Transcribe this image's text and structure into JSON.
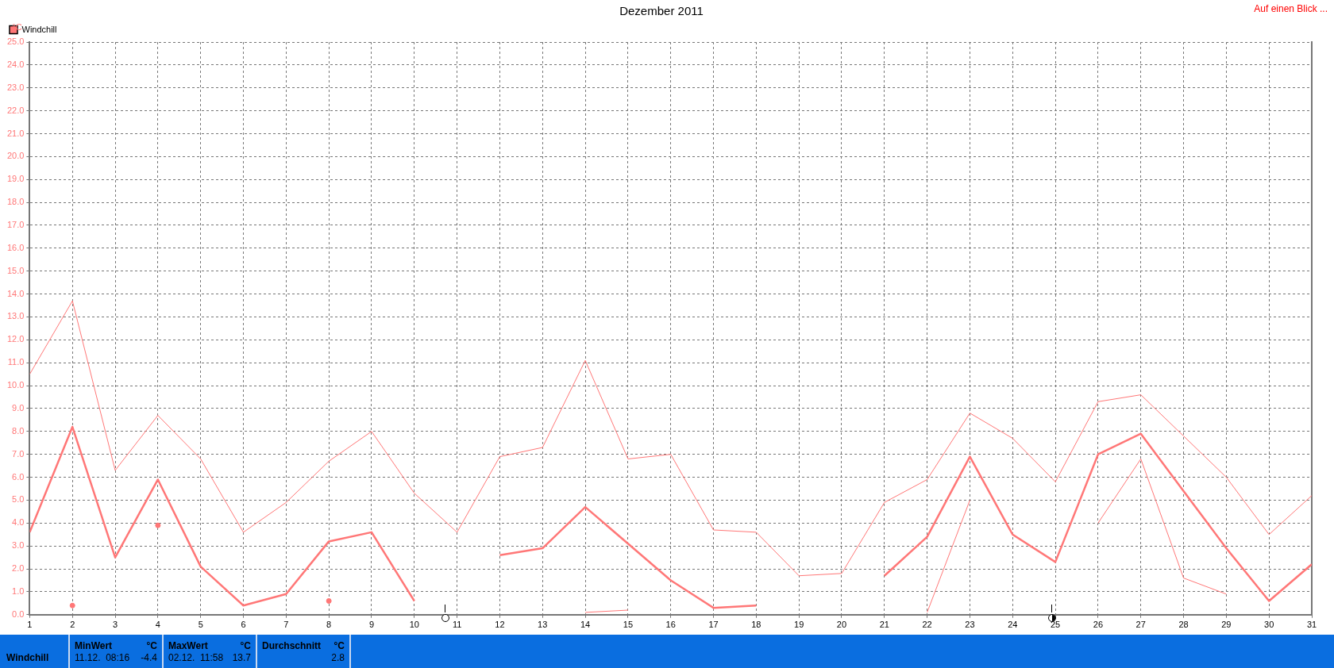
{
  "chart_data": {
    "type": "line",
    "title": "Dezember 2011",
    "ylabel": "°C",
    "x": [
      1,
      2,
      3,
      4,
      5,
      6,
      7,
      8,
      9,
      10,
      11,
      12,
      13,
      14,
      15,
      16,
      17,
      18,
      19,
      20,
      21,
      22,
      23,
      24,
      25,
      26,
      27,
      28,
      29,
      30,
      31
    ],
    "series": [
      {
        "color": "#ff7777",
        "values": [
          10.5,
          13.7,
          6.3,
          8.7,
          6.8,
          3.6,
          4.9,
          6.7,
          8.0,
          5.3,
          3.6,
          6.9,
          7.3,
          11.1,
          6.8,
          7.0,
          3.7,
          3.6,
          1.7,
          1.8,
          4.9,
          5.9,
          8.8,
          7.7,
          5.8,
          9.3,
          9.6,
          7.8,
          6.0,
          3.5,
          5.2
        ]
      },
      {
        "name": "Windchill",
        "color": "#ff7777",
        "values": [
          3.6,
          8.2,
          2.5,
          5.9,
          2.1,
          0.4,
          0.9,
          3.2,
          3.6,
          0.6,
          null,
          2.6,
          2.9,
          4.7,
          3.1,
          1.5,
          0.3,
          0.4,
          null,
          null,
          1.7,
          3.4,
          6.9,
          3.5,
          2.3,
          7.0,
          7.9,
          5.4,
          2.9,
          0.6,
          2.2
        ]
      },
      {
        "color": "#ff7777",
        "values": [
          null,
          0.4,
          null,
          3.9,
          null,
          null,
          null,
          0.6,
          null,
          null,
          null,
          null,
          null,
          0.1,
          0.2,
          null,
          null,
          null,
          null,
          null,
          null,
          0.1,
          5.0,
          null,
          null,
          4.0,
          6.8,
          1.6,
          0.9,
          null,
          null
        ]
      }
    ],
    "xlim": [
      1,
      31
    ],
    "xticks": [
      1,
      2,
      3,
      4,
      5,
      6,
      7,
      8,
      9,
      10,
      11,
      12,
      13,
      14,
      15,
      16,
      17,
      18,
      19,
      20,
      21,
      22,
      23,
      24,
      25,
      26,
      27,
      28,
      29,
      30,
      31
    ],
    "ylim": [
      0,
      25
    ],
    "yticks": [
      {
        "value": 0,
        "label": "0.0"
      },
      {
        "value": 1,
        "label": "1.0"
      },
      {
        "value": 2,
        "label": "2.0"
      },
      {
        "value": 3,
        "label": "3.0"
      },
      {
        "value": 4,
        "label": "4.0"
      },
      {
        "value": 5,
        "label": "5.0"
      },
      {
        "value": 6,
        "label": "6.0"
      },
      {
        "value": 7,
        "label": "7.0"
      },
      {
        "value": 8,
        "label": "8.0"
      },
      {
        "value": 9,
        "label": "9.0"
      },
      {
        "value": 10,
        "label": "10.0"
      },
      {
        "value": 11,
        "label": "11.0"
      },
      {
        "value": 12,
        "label": "12.0"
      },
      {
        "value": 13,
        "label": "13.0"
      },
      {
        "value": 14,
        "label": "14.0"
      },
      {
        "value": 15,
        "label": "15.0"
      },
      {
        "value": 16,
        "label": "16.0"
      },
      {
        "value": 17,
        "label": "17.0"
      },
      {
        "value": 18,
        "label": "18.0"
      },
      {
        "value": 19,
        "label": "19.0"
      },
      {
        "value": 20,
        "label": "20.0"
      },
      {
        "value": 21,
        "label": "21.0"
      },
      {
        "value": 22,
        "label": "22.0"
      },
      {
        "value": 23,
        "label": "23.0"
      },
      {
        "value": 24,
        "label": "24.0"
      },
      {
        "value": 25,
        "label": "25.0"
      }
    ],
    "grid": true,
    "legend": "top left",
    "marker": "none",
    "line_style": "solid",
    "annotations": [
      "Auf einen Blick ...",
      "Windchill",
      "MinWert",
      "°C",
      "11.12.  08:16",
      "-4.4",
      "MaxWert",
      "°C",
      "02.12.  11:58",
      "13.7",
      "Durchschnitt",
      "°C",
      "2.8"
    ]
  }
}
